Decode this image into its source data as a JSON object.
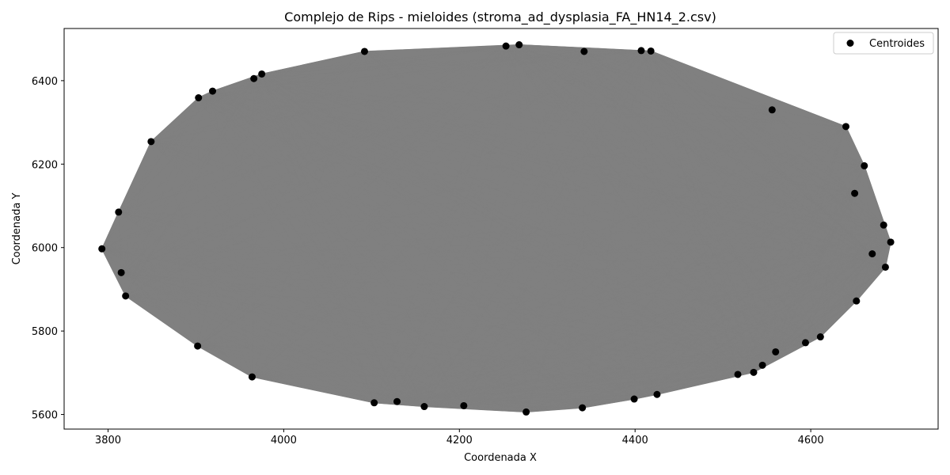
{
  "chart_data": {
    "type": "scatter",
    "title": "Complejo de Rips - mieloides (stroma_ad_dysplasia_FA_HN14_2.csv)",
    "xlabel": "Coordenada X",
    "ylabel": "Coordenada Y",
    "xlim": [
      3750,
      4745
    ],
    "ylim": [
      5565,
      6525
    ],
    "xticks": [
      3800,
      4000,
      4200,
      4400,
      4600
    ],
    "yticks": [
      5600,
      5800,
      6000,
      6200,
      6400
    ],
    "grid": false,
    "legend": {
      "placement": "top-right",
      "entries": [
        "Centroides"
      ]
    },
    "series": [
      {
        "name": "Centroides",
        "marker_color": "#000000",
        "edge_color": "#808080",
        "points": [
          [
            3793,
            5997
          ],
          [
            3812,
            6085
          ],
          [
            3815,
            5940
          ],
          [
            3820,
            5884
          ],
          [
            3849,
            6254
          ],
          [
            3902,
            5764
          ],
          [
            3903,
            6359
          ],
          [
            3919,
            6375
          ],
          [
            3964,
            5690
          ],
          [
            3966,
            6405
          ],
          [
            3975,
            6416
          ],
          [
            4092,
            6470
          ],
          [
            4103,
            5628
          ],
          [
            4129,
            5631
          ],
          [
            4160,
            5619
          ],
          [
            4205,
            5621
          ],
          [
            4253,
            6483
          ],
          [
            4268,
            6486
          ],
          [
            4276,
            5606
          ],
          [
            4342,
            6470
          ],
          [
            4340,
            5616
          ],
          [
            4399,
            5637
          ],
          [
            4407,
            6472
          ],
          [
            4418,
            6471
          ],
          [
            4425,
            5648
          ],
          [
            4517,
            5696
          ],
          [
            4535,
            5701
          ],
          [
            4545,
            5718
          ],
          [
            4556,
            6330
          ],
          [
            4594,
            5772
          ],
          [
            4611,
            5786
          ],
          [
            4640,
            6290
          ],
          [
            4652,
            5872
          ],
          [
            4661,
            6196
          ],
          [
            4683,
            6054
          ],
          [
            4685,
            5953
          ],
          [
            4691,
            6013
          ],
          [
            4670,
            5985
          ],
          [
            4650,
            6130
          ],
          [
            4560,
            5750
          ]
        ]
      }
    ]
  }
}
